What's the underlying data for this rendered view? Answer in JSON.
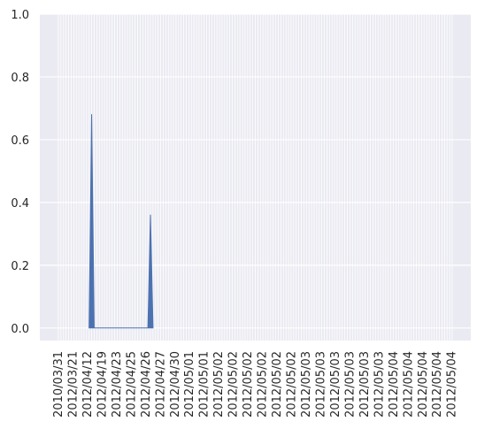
{
  "chart_data": {
    "type": "area",
    "title": "",
    "xlabel": "",
    "ylabel": "",
    "ylim": [
      0,
      1.0
    ],
    "yticks": [
      0.0,
      0.2,
      0.4,
      0.6,
      0.8,
      1.0
    ],
    "ytick_labels": [
      "0.0",
      "0.2",
      "0.4",
      "0.6",
      "0.8",
      "1.0"
    ],
    "xtick_labels": [
      "2010/03/31",
      "2012/03/21",
      "2012/04/12",
      "2012/04/19",
      "2012/04/23",
      "2012/04/25",
      "2012/04/26",
      "2012/04/27",
      "2012/04/30",
      "2012/05/01",
      "2012/05/01",
      "2012/05/02",
      "2012/05/02",
      "2012/05/02",
      "2012/05/02",
      "2012/05/02",
      "2012/05/02",
      "2012/05/03",
      "2012/05/03",
      "2012/05/03",
      "2012/05/03",
      "2012/05/03",
      "2012/05/03",
      "2012/05/04",
      "2012/05/04",
      "2012/05/04",
      "2012/05/04",
      "2012/05/04"
    ],
    "n_categories": 155,
    "series": [
      {
        "color": "#4c72b0",
        "points": [
          {
            "x": 12,
            "y": 0
          },
          {
            "x": 13,
            "y": 0.68
          },
          {
            "x": 14,
            "y": 0
          },
          {
            "x": 35,
            "y": 0
          },
          {
            "x": 36,
            "y": 0.36
          },
          {
            "x": 37,
            "y": 0
          }
        ]
      }
    ],
    "grid": true,
    "background": "#eaeaf2",
    "grid_color": "#ffffff"
  }
}
